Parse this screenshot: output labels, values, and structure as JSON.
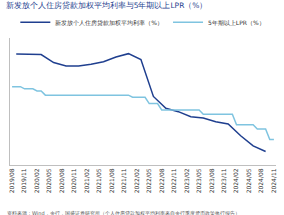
{
  "chart_data": {
    "type": "line",
    "title": "新发放个人住房贷款加权平均利率与5年期以上LPR（%）",
    "annotations": [
      "资料来源：Wind，央行，国盛证券研究所（个人住房贷款加权平均利率来自央行季度货币政策执行报告）"
    ],
    "categories": [
      "2019/08",
      null,
      null,
      "2019/11",
      null,
      null,
      "2020/02",
      null,
      null,
      "2020/05",
      null,
      null,
      "2020/08",
      null,
      null,
      "2020/11",
      null,
      null,
      "2021/02",
      null,
      null,
      "2021/05",
      null,
      null,
      "2021/08",
      null,
      null,
      "2021/11",
      null,
      null,
      "2022/02",
      null,
      null,
      "2022/05",
      null,
      null,
      "2022/08",
      null,
      null,
      "2022/11",
      null,
      null,
      "2023/02",
      null,
      null,
      "2023/05",
      null,
      null,
      "2023/08",
      null,
      null,
      "2023/11",
      null,
      null,
      "2024/02",
      null,
      null,
      "2024/05",
      null,
      null,
      "2024/08",
      null,
      null,
      "2024/11"
    ],
    "series": [
      {
        "name": "新发放个人住房贷款加权平均利率（%）",
        "color": "#1f3f8f",
        "values": [
          null,
          5.62,
          null,
          null,
          5.62,
          null,
          null,
          5.61,
          null,
          null,
          5.42,
          null,
          null,
          5.34,
          null,
          null,
          5.34,
          null,
          null,
          5.38,
          null,
          null,
          5.44,
          null,
          null,
          5.55,
          null,
          null,
          5.63,
          null,
          null,
          5.49,
          null,
          null,
          4.62,
          null,
          null,
          4.34,
          null,
          null,
          4.26,
          null,
          null,
          4.14,
          null,
          null,
          4.11,
          null,
          null,
          4.02,
          null,
          null,
          3.97,
          null,
          null,
          3.69,
          null,
          null,
          3.45,
          null,
          null,
          3.32,
          null,
          null
        ]
      },
      {
        "name": "5年期以上LPR（%）",
        "color": "#7fc4e0",
        "values": [
          4.85,
          4.85,
          4.85,
          4.8,
          4.8,
          4.8,
          4.75,
          4.75,
          4.65,
          4.65,
          4.65,
          4.65,
          4.65,
          4.65,
          4.65,
          4.65,
          4.65,
          4.65,
          4.65,
          4.65,
          4.65,
          4.65,
          4.65,
          4.65,
          4.65,
          4.65,
          4.65,
          4.65,
          4.65,
          4.6,
          4.6,
          4.6,
          4.6,
          4.45,
          4.45,
          4.45,
          4.3,
          4.3,
          4.3,
          4.3,
          4.3,
          4.3,
          4.3,
          4.3,
          4.3,
          4.3,
          4.2,
          4.2,
          4.2,
          4.2,
          4.2,
          4.2,
          4.2,
          4.2,
          3.95,
          3.95,
          3.95,
          3.95,
          3.95,
          3.85,
          3.85,
          3.85,
          3.6,
          3.6
        ]
      }
    ],
    "ylim": [
      3.0,
      6.0
    ],
    "grid": false,
    "legend": "top",
    "tick_labels": "x"
  }
}
